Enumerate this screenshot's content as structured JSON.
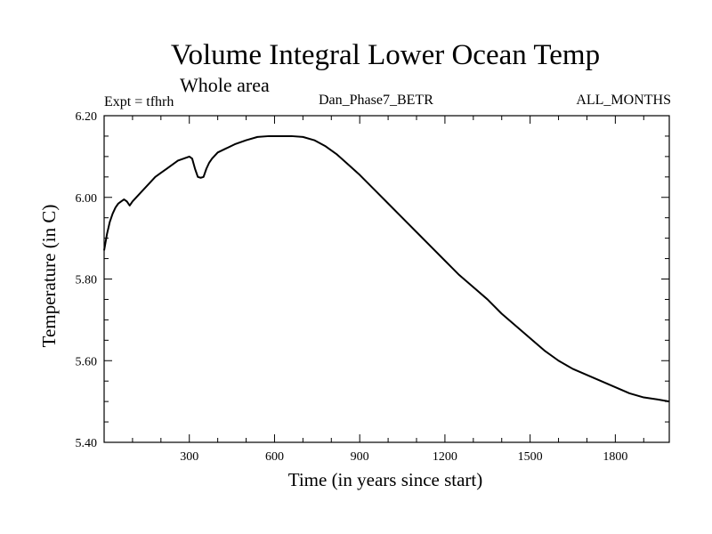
{
  "header": {
    "title": "Volume Integral Lower Ocean Temp",
    "subtitle": "Whole area",
    "experiment": "Expt = tfhrh",
    "run_name": "Dan_Phase7_BETR",
    "months": "ALL_MONTHS"
  },
  "chart_data": {
    "type": "line",
    "title": "Volume Integral Lower Ocean Temp",
    "subtitle": "Whole area",
    "xlabel": "Time (in years since start)",
    "ylabel": "Temperature (in C)",
    "xlim": [
      0,
      1990
    ],
    "ylim": [
      5.4,
      6.2
    ],
    "x_ticks": [
      300,
      600,
      900,
      1200,
      1500,
      1800
    ],
    "x_tick_labels": [
      "300",
      "600",
      "900",
      "1200",
      "1500",
      "1800"
    ],
    "y_ticks": [
      5.4,
      5.6,
      5.8,
      6.0,
      6.2
    ],
    "y_tick_labels": [
      "5.40",
      "5.60",
      "5.80",
      "6.00",
      "6.20"
    ],
    "grid": false,
    "series": [
      {
        "name": "tfhrh",
        "x": [
          0,
          5,
          10,
          20,
          30,
          40,
          50,
          60,
          70,
          80,
          90,
          100,
          120,
          140,
          160,
          180,
          200,
          220,
          240,
          260,
          280,
          300,
          310,
          320,
          330,
          340,
          350,
          360,
          370,
          380,
          400,
          430,
          460,
          500,
          540,
          580,
          620,
          660,
          700,
          740,
          780,
          820,
          860,
          900,
          950,
          1000,
          1050,
          1100,
          1150,
          1200,
          1250,
          1300,
          1350,
          1400,
          1450,
          1500,
          1550,
          1600,
          1650,
          1700,
          1750,
          1800,
          1850,
          1900,
          1950,
          1990
        ],
        "y": [
          5.87,
          5.89,
          5.91,
          5.94,
          5.96,
          5.975,
          5.985,
          5.99,
          5.995,
          5.99,
          5.98,
          5.99,
          6.005,
          6.02,
          6.035,
          6.05,
          6.06,
          6.07,
          6.08,
          6.09,
          6.095,
          6.1,
          6.095,
          6.07,
          6.05,
          6.048,
          6.05,
          6.07,
          6.085,
          6.095,
          6.11,
          6.12,
          6.13,
          6.14,
          6.148,
          6.15,
          6.15,
          6.15,
          6.148,
          6.14,
          6.125,
          6.105,
          6.08,
          6.055,
          6.02,
          5.985,
          5.95,
          5.915,
          5.88,
          5.845,
          5.81,
          5.78,
          5.75,
          5.715,
          5.685,
          5.655,
          5.625,
          5.6,
          5.58,
          5.565,
          5.55,
          5.535,
          5.52,
          5.51,
          5.505,
          5.5
        ]
      }
    ]
  }
}
